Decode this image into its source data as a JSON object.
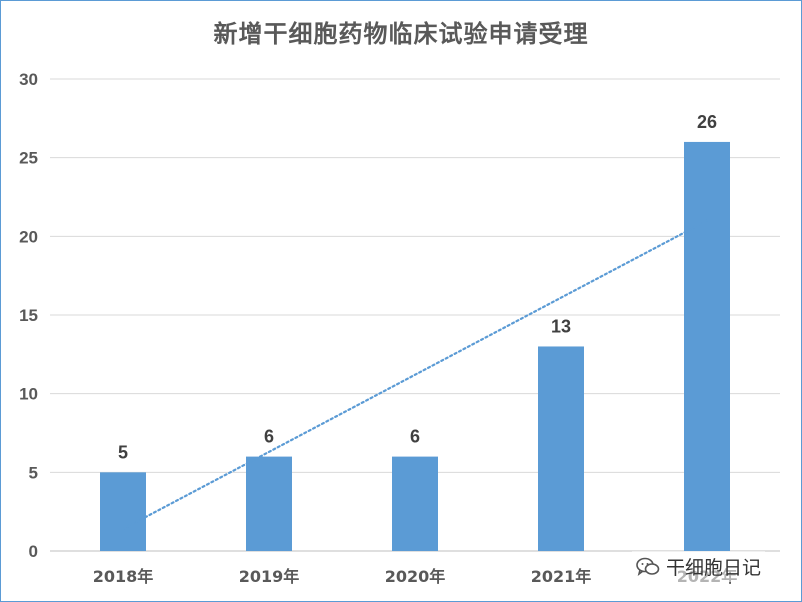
{
  "chart_data": {
    "type": "bar",
    "title": "新增干细胞药物临床试验申请受理",
    "categories": [
      "2018年",
      "2019年",
      "2020年",
      "2021年",
      "2022年"
    ],
    "series": [
      {
        "values": [
          5,
          6,
          6,
          13,
          26
        ],
        "color": "#5b9bd5"
      }
    ],
    "data_labels": [
      "5",
      "6",
      "6",
      "13",
      "26"
    ],
    "trendline": {
      "type": "linear",
      "style": "dotted",
      "color": "#5b9bd5"
    },
    "ylim": [
      0,
      30
    ],
    "yticks": [
      "0",
      "5",
      "10",
      "15",
      "20",
      "25",
      "30"
    ],
    "grid": true,
    "legend": "none",
    "xlabel": "",
    "ylabel": ""
  },
  "watermark": {
    "text": "干细胞日记",
    "icon": "wechat-bubble-icon"
  }
}
